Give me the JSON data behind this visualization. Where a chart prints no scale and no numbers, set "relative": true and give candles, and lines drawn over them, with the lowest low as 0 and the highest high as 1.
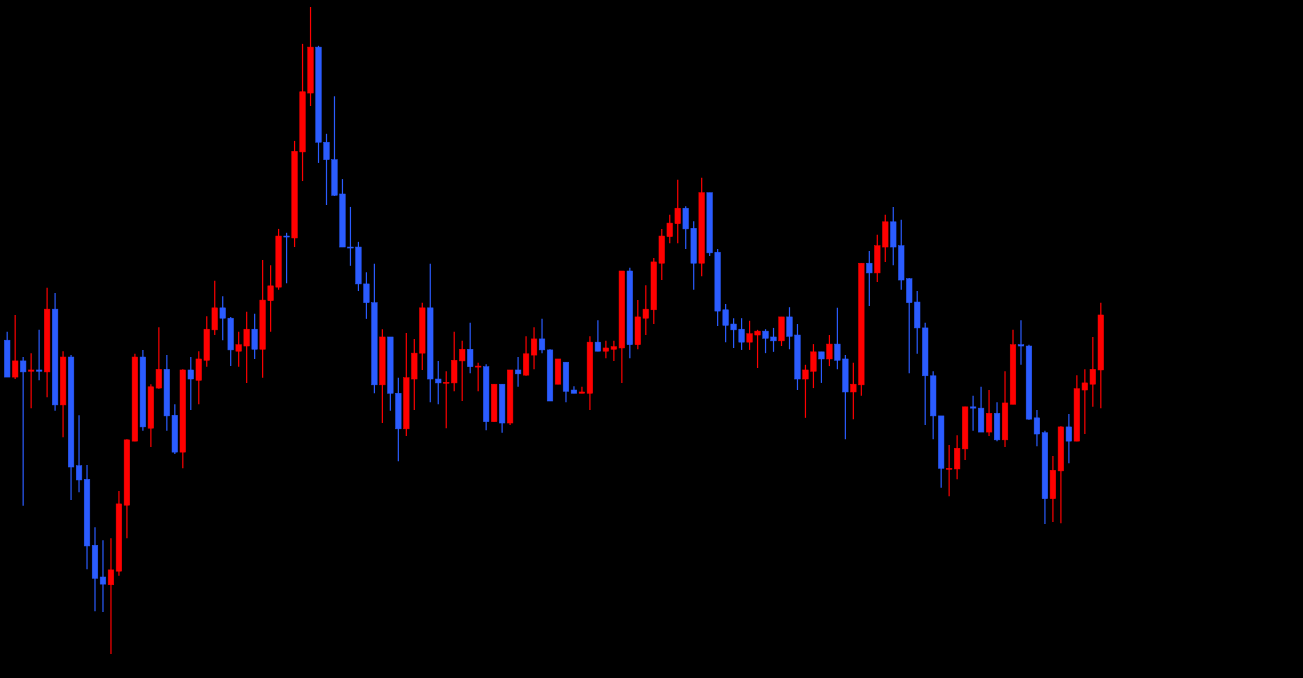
{
  "chart_data": {
    "type": "candlestick",
    "relative": true,
    "categories": [
      null,
      null,
      null,
      null,
      null,
      null,
      null,
      null,
      null,
      null,
      null,
      null,
      null,
      null,
      null,
      null,
      null,
      null,
      null,
      null,
      null,
      null,
      null,
      null,
      null,
      null,
      null,
      null,
      null,
      null,
      null,
      null,
      null,
      null,
      null,
      null,
      null,
      null,
      null,
      null,
      null,
      null,
      null,
      null,
      null,
      null,
      null,
      null,
      null,
      null,
      null,
      null,
      null,
      null,
      null,
      null,
      null,
      null,
      null,
      null,
      null,
      null,
      null,
      null,
      null,
      null,
      null,
      null,
      null,
      null,
      null,
      null,
      null,
      null,
      null,
      null,
      null,
      null,
      null,
      null,
      null,
      null,
      null,
      null,
      null,
      null,
      null,
      null,
      null,
      null,
      null,
      null,
      null,
      null,
      null,
      null,
      null,
      null,
      null,
      null,
      null,
      null,
      null,
      null,
      null,
      null,
      null,
      null,
      null,
      null,
      null,
      null,
      null,
      null,
      null,
      null,
      null,
      null,
      null,
      null,
      null,
      null,
      null,
      null,
      null,
      null,
      null,
      null,
      null,
      null,
      null,
      null,
      null,
      null,
      null,
      null,
      null,
      null
    ],
    "ohlc": [
      [
        0.485,
        0.498,
        0.428,
        0.428
      ],
      [
        0.428,
        0.524,
        0.425,
        0.453
      ],
      [
        0.453,
        0.459,
        0.229,
        0.436
      ],
      [
        0.437,
        0.465,
        0.38,
        0.439
      ],
      [
        0.439,
        0.501,
        0.423,
        0.437
      ],
      [
        0.436,
        0.566,
        0.397,
        0.533
      ],
      [
        0.533,
        0.558,
        0.376,
        0.385
      ],
      [
        0.385,
        0.468,
        0.335,
        0.459
      ],
      [
        0.459,
        0.462,
        0.238,
        0.289
      ],
      [
        0.291,
        0.369,
        0.25,
        0.269
      ],
      [
        0.27,
        0.292,
        0.131,
        0.167
      ],
      [
        0.168,
        0.196,
        0.066,
        0.117
      ],
      [
        0.119,
        0.176,
        0.065,
        0.108
      ],
      [
        0.107,
        0.179,
        0.0,
        0.13
      ],
      [
        0.128,
        0.252,
        0.121,
        0.232
      ],
      [
        0.23,
        0.332,
        0.179,
        0.331
      ],
      [
        0.329,
        0.464,
        0.329,
        0.459
      ],
      [
        0.459,
        0.47,
        0.345,
        0.351
      ],
      [
        0.349,
        0.417,
        0.32,
        0.413
      ],
      [
        0.411,
        0.505,
        0.41,
        0.44
      ],
      [
        0.44,
        0.462,
        0.345,
        0.368
      ],
      [
        0.369,
        0.386,
        0.309,
        0.312
      ],
      [
        0.312,
        0.44,
        0.287,
        0.439
      ],
      [
        0.439,
        0.459,
        0.377,
        0.425
      ],
      [
        0.423,
        0.468,
        0.386,
        0.456
      ],
      [
        0.454,
        0.522,
        0.444,
        0.502
      ],
      [
        0.501,
        0.577,
        0.493,
        0.535
      ],
      [
        0.535,
        0.553,
        0.485,
        0.519
      ],
      [
        0.519,
        0.521,
        0.445,
        0.47
      ],
      [
        0.468,
        0.498,
        0.444,
        0.478
      ],
      [
        0.476,
        0.529,
        0.419,
        0.502
      ],
      [
        0.502,
        0.526,
        0.456,
        0.471
      ],
      [
        0.471,
        0.609,
        0.427,
        0.547
      ],
      [
        0.546,
        0.601,
        0.498,
        0.569
      ],
      [
        0.567,
        0.657,
        0.563,
        0.646
      ],
      [
        0.646,
        0.651,
        0.573,
        0.645
      ],
      [
        0.643,
        0.793,
        0.629,
        0.777
      ],
      [
        0.776,
        0.943,
        0.731,
        0.869
      ],
      [
        0.867,
        1.0,
        0.847,
        0.938
      ],
      [
        0.938,
        0.94,
        0.759,
        0.791
      ],
      [
        0.791,
        0.804,
        0.694,
        0.764
      ],
      [
        0.764,
        0.862,
        0.708,
        0.709
      ],
      [
        0.711,
        0.734,
        0.629,
        0.629
      ],
      [
        0.629,
        0.691,
        0.6,
        0.628
      ],
      [
        0.629,
        0.637,
        0.561,
        0.572
      ],
      [
        0.572,
        0.59,
        0.518,
        0.543
      ],
      [
        0.543,
        0.603,
        0.403,
        0.416
      ],
      [
        0.416,
        0.502,
        0.357,
        0.49
      ],
      [
        0.49,
        0.49,
        0.376,
        0.403
      ],
      [
        0.403,
        0.427,
        0.298,
        0.348
      ],
      [
        0.348,
        0.496,
        0.337,
        0.427
      ],
      [
        0.425,
        0.487,
        0.377,
        0.465
      ],
      [
        0.465,
        0.543,
        0.439,
        0.535
      ],
      [
        0.535,
        0.603,
        0.389,
        0.425
      ],
      [
        0.425,
        0.453,
        0.386,
        0.419
      ],
      [
        0.419,
        0.437,
        0.349,
        0.42
      ],
      [
        0.419,
        0.498,
        0.406,
        0.454
      ],
      [
        0.453,
        0.484,
        0.391,
        0.471
      ],
      [
        0.471,
        0.512,
        0.434,
        0.444
      ],
      [
        0.444,
        0.45,
        0.406,
        0.445
      ],
      [
        0.444,
        0.448,
        0.346,
        0.359
      ],
      [
        0.359,
        0.417,
        0.359,
        0.417
      ],
      [
        0.417,
        0.417,
        0.342,
        0.357
      ],
      [
        0.357,
        0.439,
        0.354,
        0.439
      ],
      [
        0.439,
        0.459,
        0.413,
        0.433
      ],
      [
        0.431,
        0.491,
        0.43,
        0.464
      ],
      [
        0.462,
        0.505,
        0.44,
        0.487
      ],
      [
        0.487,
        0.518,
        0.465,
        0.47
      ],
      [
        0.47,
        0.471,
        0.391,
        0.391
      ],
      [
        0.417,
        0.456,
        0.417,
        0.456
      ],
      [
        0.451,
        0.451,
        0.389,
        0.406
      ],
      [
        0.408,
        0.414,
        0.403,
        0.403
      ],
      [
        0.403,
        0.413,
        0.403,
        0.405
      ],
      [
        0.403,
        0.491,
        0.377,
        0.482
      ],
      [
        0.482,
        0.516,
        0.468,
        0.468
      ],
      [
        0.468,
        0.484,
        0.457,
        0.473
      ],
      [
        0.471,
        0.484,
        0.453,
        0.475
      ],
      [
        0.473,
        0.592,
        0.419,
        0.592
      ],
      [
        0.592,
        0.597,
        0.457,
        0.478
      ],
      [
        0.478,
        0.547,
        0.471,
        0.521
      ],
      [
        0.519,
        0.57,
        0.493,
        0.533
      ],
      [
        0.532,
        0.612,
        0.51,
        0.606
      ],
      [
        0.604,
        0.657,
        0.578,
        0.646
      ],
      [
        0.645,
        0.679,
        0.635,
        0.666
      ],
      [
        0.665,
        0.733,
        0.635,
        0.689
      ],
      [
        0.689,
        0.692,
        0.626,
        0.657
      ],
      [
        0.658,
        0.669,
        0.563,
        0.604
      ],
      [
        0.604,
        0.736,
        0.584,
        0.713
      ],
      [
        0.713,
        0.713,
        0.615,
        0.62
      ],
      [
        0.621,
        0.626,
        0.507,
        0.53
      ],
      [
        0.532,
        0.541,
        0.482,
        0.508
      ],
      [
        0.51,
        0.519,
        0.473,
        0.501
      ],
      [
        0.502,
        0.519,
        0.47,
        0.482
      ],
      [
        0.482,
        0.515,
        0.47,
        0.495
      ],
      [
        0.493,
        0.501,
        0.442,
        0.499
      ],
      [
        0.499,
        0.502,
        0.465,
        0.488
      ],
      [
        0.49,
        0.504,
        0.467,
        0.484
      ],
      [
        0.484,
        0.521,
        0.476,
        0.521
      ],
      [
        0.521,
        0.536,
        0.471,
        0.491
      ],
      [
        0.493,
        0.51,
        0.408,
        0.425
      ],
      [
        0.425,
        0.447,
        0.365,
        0.439
      ],
      [
        0.437,
        0.479,
        0.411,
        0.467
      ],
      [
        0.467,
        0.467,
        0.419,
        0.456
      ],
      [
        0.456,
        0.493,
        0.445,
        0.479
      ],
      [
        0.479,
        0.535,
        0.44,
        0.454
      ],
      [
        0.456,
        0.462,
        0.332,
        0.405
      ],
      [
        0.405,
        0.45,
        0.363,
        0.417
      ],
      [
        0.416,
        0.604,
        0.399,
        0.604
      ],
      [
        0.604,
        0.623,
        0.538,
        0.589
      ],
      [
        0.589,
        0.648,
        0.575,
        0.631
      ],
      [
        0.629,
        0.679,
        0.606,
        0.668
      ],
      [
        0.668,
        0.691,
        0.601,
        0.629
      ],
      [
        0.631,
        0.671,
        0.563,
        0.578
      ],
      [
        0.58,
        0.581,
        0.434,
        0.543
      ],
      [
        0.544,
        0.561,
        0.464,
        0.504
      ],
      [
        0.504,
        0.512,
        0.354,
        0.43
      ],
      [
        0.43,
        0.437,
        0.332,
        0.368
      ],
      [
        0.368,
        0.368,
        0.257,
        0.287
      ],
      [
        0.286,
        0.323,
        0.244,
        0.287
      ],
      [
        0.286,
        0.338,
        0.27,
        0.318
      ],
      [
        0.317,
        0.382,
        0.3,
        0.382
      ],
      [
        0.382,
        0.399,
        0.345,
        0.38
      ],
      [
        0.38,
        0.413,
        0.343,
        0.343
      ],
      [
        0.343,
        0.408,
        0.337,
        0.372
      ],
      [
        0.372,
        0.389,
        0.329,
        0.331
      ],
      [
        0.331,
        0.437,
        0.32,
        0.388
      ],
      [
        0.386,
        0.501,
        0.386,
        0.478
      ],
      [
        0.478,
        0.516,
        0.447,
        0.476
      ],
      [
        0.476,
        0.478,
        0.362,
        0.363
      ],
      [
        0.365,
        0.377,
        0.321,
        0.34
      ],
      [
        0.342,
        0.345,
        0.201,
        0.24
      ],
      [
        0.24,
        0.306,
        0.204,
        0.284
      ],
      [
        0.283,
        0.352,
        0.202,
        0.351
      ],
      [
        0.351,
        0.371,
        0.295,
        0.329
      ],
      [
        0.329,
        0.431,
        0.329,
        0.41
      ],
      [
        0.408,
        0.44,
        0.34,
        0.419
      ],
      [
        0.417,
        0.49,
        0.382,
        0.44
      ],
      [
        0.439,
        0.543,
        0.38,
        0.524
      ]
    ],
    "colors": [
      "#2b5cff",
      "#ff0000",
      "#2b5cff",
      "#ff0000",
      "#2b5cff",
      "#ff0000",
      "#2b5cff",
      "#ff0000",
      "#2b5cff",
      "#2b5cff",
      "#2b5cff",
      "#2b5cff",
      "#2b5cff",
      "#ff0000",
      "#ff0000",
      "#ff0000",
      "#ff0000",
      "#2b5cff",
      "#ff0000",
      "#ff0000",
      "#2b5cff",
      "#2b5cff",
      "#ff0000",
      "#2b5cff",
      "#ff0000",
      "#ff0000",
      "#ff0000",
      "#2b5cff",
      "#2b5cff",
      "#ff0000",
      "#ff0000",
      "#2b5cff",
      "#ff0000",
      "#ff0000",
      "#ff0000",
      "#2b5cff",
      "#ff0000",
      "#ff0000",
      "#ff0000",
      "#2b5cff",
      "#2b5cff",
      "#2b5cff",
      "#2b5cff",
      "#2b5cff",
      "#2b5cff",
      "#2b5cff",
      "#2b5cff",
      "#ff0000",
      "#2b5cff",
      "#2b5cff",
      "#ff0000",
      "#ff0000",
      "#ff0000",
      "#2b5cff",
      "#2b5cff",
      "#ff0000",
      "#ff0000",
      "#ff0000",
      "#2b5cff",
      "#ff0000",
      "#2b5cff",
      "#ff0000",
      "#2b5cff",
      "#ff0000",
      "#2b5cff",
      "#ff0000",
      "#ff0000",
      "#2b5cff",
      "#2b5cff",
      "#ff0000",
      "#2b5cff",
      "#2b5cff",
      "#ff0000",
      "#ff0000",
      "#2b5cff",
      "#ff0000",
      "#ff0000",
      "#ff0000",
      "#2b5cff",
      "#ff0000",
      "#ff0000",
      "#ff0000",
      "#ff0000",
      "#ff0000",
      "#ff0000",
      "#2b5cff",
      "#2b5cff",
      "#ff0000",
      "#2b5cff",
      "#2b5cff",
      "#2b5cff",
      "#2b5cff",
      "#2b5cff",
      "#ff0000",
      "#ff0000",
      "#2b5cff",
      "#2b5cff",
      "#ff0000",
      "#2b5cff",
      "#2b5cff",
      "#ff0000",
      "#ff0000",
      "#2b5cff",
      "#ff0000",
      "#2b5cff",
      "#2b5cff",
      "#ff0000",
      "#ff0000",
      "#2b5cff",
      "#ff0000",
      "#ff0000",
      "#2b5cff",
      "#2b5cff",
      "#2b5cff",
      "#2b5cff",
      "#2b5cff",
      "#2b5cff",
      "#2b5cff",
      "#ff0000",
      "#ff0000",
      "#ff0000",
      "#2b5cff",
      "#2b5cff",
      "#ff0000",
      "#2b5cff",
      "#ff0000",
      "#ff0000",
      "#2b5cff",
      "#2b5cff",
      "#2b5cff",
      "#2b5cff",
      "#ff0000",
      "#ff0000",
      "#2b5cff",
      "#ff0000",
      "#ff0000",
      "#ff0000",
      "#ff0000"
    ]
  }
}
